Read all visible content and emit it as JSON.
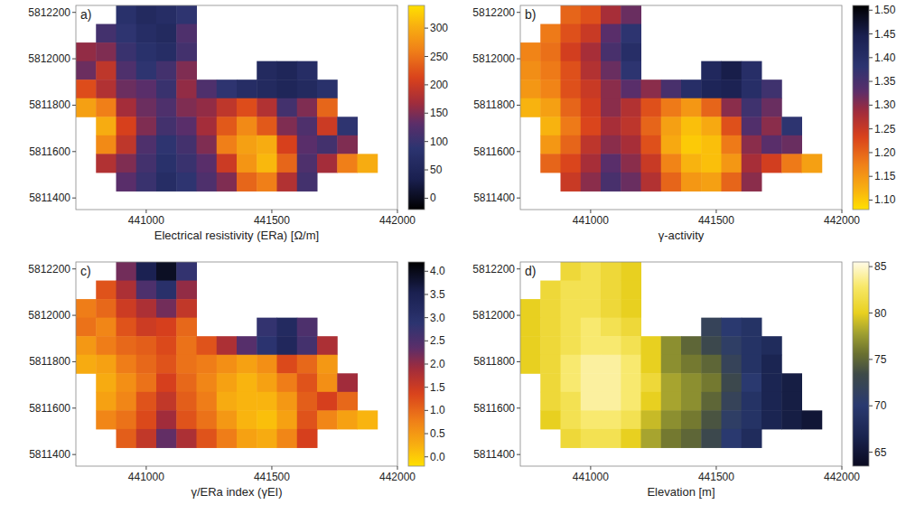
{
  "chart_data": [
    {
      "type": "heatmap",
      "panel": "a)",
      "xlabel": "Electrical resistivity (ERa) [Ω/m]",
      "x": [
        440760,
        440840,
        440920,
        441000,
        441080,
        441160,
        441240,
        441320,
        441400,
        441480,
        441560,
        441640,
        441720,
        441800,
        441880,
        441960
      ],
      "y": [
        5812190,
        5812110,
        5812030,
        5811950,
        5811870,
        5811790,
        5811710,
        5811630,
        5811550,
        5811470
      ],
      "xlim": [
        440720,
        442000
      ],
      "ylim": [
        5811350,
        5812230
      ],
      "xticks": [
        441000,
        441500,
        442000
      ],
      "yticks": [
        5811400,
        5811600,
        5811800,
        5812000,
        5812200
      ],
      "cells": [
        [
          null,
          null,
          80,
          60,
          70,
          90,
          null,
          null,
          null,
          null,
          null,
          null,
          null,
          null,
          null,
          null
        ],
        [
          null,
          110,
          90,
          70,
          60,
          120,
          null,
          null,
          null,
          null,
          null,
          null,
          null,
          null,
          null,
          null
        ],
        [
          160,
          150,
          100,
          80,
          70,
          110,
          null,
          null,
          null,
          null,
          null,
          null,
          null,
          null,
          null,
          null
        ],
        [
          140,
          190,
          120,
          90,
          110,
          150,
          null,
          null,
          null,
          60,
          50,
          70,
          null,
          null,
          null,
          null
        ],
        [
          220,
          180,
          140,
          130,
          100,
          160,
          120,
          90,
          70,
          60,
          50,
          60,
          80,
          null,
          null,
          null
        ],
        [
          290,
          260,
          170,
          140,
          120,
          150,
          160,
          190,
          220,
          180,
          110,
          150,
          240,
          null,
          null,
          null
        ],
        [
          null,
          300,
          210,
          150,
          110,
          130,
          170,
          230,
          270,
          230,
          150,
          120,
          200,
          90,
          null,
          null
        ],
        [
          null,
          270,
          190,
          120,
          90,
          110,
          150,
          260,
          290,
          300,
          210,
          130,
          110,
          150,
          null,
          null
        ],
        [
          null,
          180,
          150,
          110,
          80,
          100,
          130,
          200,
          280,
          310,
          240,
          120,
          170,
          260,
          300,
          null
        ],
        [
          null,
          null,
          130,
          100,
          70,
          90,
          120,
          150,
          240,
          260,
          180,
          110,
          null,
          null,
          null,
          null
        ]
      ],
      "color_range": [
        -20,
        340
      ],
      "color_ticks": [
        0,
        50,
        100,
        150,
        200,
        250,
        300
      ]
    },
    {
      "type": "heatmap",
      "panel": "b)",
      "xlabel": "γ-activity",
      "x": [
        440760,
        440840,
        440920,
        441000,
        441080,
        441160,
        441240,
        441320,
        441400,
        441480,
        441560,
        441640,
        441720,
        441800,
        441880,
        441960
      ],
      "y": [
        5812190,
        5812110,
        5812030,
        5811950,
        5811870,
        5811790,
        5811710,
        5811630,
        5811550,
        5811470
      ],
      "xlim": [
        440720,
        442000
      ],
      "ylim": [
        5811350,
        5812230
      ],
      "xticks": [
        441000,
        441500,
        442000
      ],
      "yticks": [
        5811400,
        5811600,
        5811800,
        5812000,
        5812200
      ],
      "cells": [
        [
          null,
          null,
          1.2,
          1.22,
          1.28,
          1.32,
          null,
          null,
          null,
          null,
          null,
          null,
          null,
          null,
          null,
          null
        ],
        [
          null,
          1.18,
          1.22,
          1.25,
          1.33,
          1.38,
          null,
          null,
          null,
          null,
          null,
          null,
          null,
          null,
          null,
          null
        ],
        [
          1.17,
          1.19,
          1.24,
          1.28,
          1.35,
          1.4,
          null,
          null,
          null,
          null,
          null,
          null,
          null,
          null,
          null,
          null
        ],
        [
          1.16,
          1.18,
          1.22,
          1.27,
          1.32,
          1.38,
          null,
          null,
          null,
          1.42,
          1.45,
          1.4,
          null,
          null,
          null,
          null
        ],
        [
          1.15,
          1.17,
          1.22,
          1.25,
          1.3,
          1.33,
          1.3,
          1.35,
          1.4,
          1.43,
          1.44,
          1.4,
          1.36,
          null,
          null,
          null
        ],
        [
          1.12,
          1.14,
          1.2,
          1.24,
          1.3,
          1.27,
          1.22,
          1.18,
          1.15,
          1.2,
          1.3,
          1.36,
          1.32,
          null,
          null,
          null
        ],
        [
          null,
          1.12,
          1.18,
          1.23,
          1.28,
          1.26,
          1.2,
          1.14,
          1.11,
          1.13,
          1.22,
          1.34,
          1.3,
          1.38,
          null,
          null
        ],
        [
          null,
          1.15,
          1.2,
          1.26,
          1.3,
          1.28,
          1.22,
          1.13,
          1.1,
          1.11,
          1.18,
          1.3,
          1.33,
          1.32,
          null,
          null
        ],
        [
          null,
          1.2,
          1.23,
          1.28,
          1.33,
          1.3,
          1.25,
          1.17,
          1.12,
          1.11,
          1.15,
          1.28,
          1.24,
          1.18,
          1.14,
          null
        ],
        [
          null,
          null,
          1.25,
          1.3,
          1.35,
          1.32,
          1.27,
          1.2,
          1.15,
          1.14,
          1.2,
          1.3,
          null,
          null,
          null,
          null
        ]
      ],
      "color_range": [
        1.08,
        1.51
      ],
      "color_ticks": [
        {
          "value": 1.1,
          "label": "1.10"
        },
        1.15,
        {
          "value": 1.2,
          "label": "1.20"
        },
        1.25,
        {
          "value": 1.3,
          "label": "1.30"
        },
        1.35,
        {
          "value": 1.4,
          "label": "1.40"
        },
        1.45,
        {
          "value": 1.5,
          "label": "1.50"
        }
      ]
    },
    {
      "type": "heatmap",
      "panel": "c)",
      "xlabel": "γ/ERa index (γEI)",
      "x": [
        440760,
        440840,
        440920,
        441000,
        441080,
        441160,
        441240,
        441320,
        441400,
        441480,
        441560,
        441640,
        441720,
        441800,
        441880,
        441960
      ],
      "y": [
        5812190,
        5812110,
        5812030,
        5811950,
        5811870,
        5811790,
        5811710,
        5811630,
        5811550,
        5811470
      ],
      "xlim": [
        440720,
        442000
      ],
      "ylim": [
        5811350,
        5812230
      ],
      "xticks": [
        441000,
        441500,
        442000
      ],
      "yticks": [
        5811400,
        5811600,
        5811800,
        5812000,
        5812200
      ],
      "cells": [
        [
          null,
          null,
          2.2,
          3.5,
          3.9,
          2.8,
          null,
          null,
          null,
          null,
          null,
          null,
          null,
          null,
          null,
          null
        ],
        [
          null,
          1.2,
          1.8,
          2.5,
          3.0,
          2.0,
          null,
          null,
          null,
          null,
          null,
          null,
          null,
          null,
          null,
          null
        ],
        [
          0.8,
          1.0,
          1.5,
          1.8,
          2.2,
          1.6,
          null,
          null,
          null,
          null,
          null,
          null,
          null,
          null,
          null,
          null
        ],
        [
          0.9,
          0.7,
          1.2,
          1.5,
          1.4,
          1.0,
          null,
          null,
          null,
          2.8,
          3.2,
          2.5,
          null,
          null,
          null,
          null
        ],
        [
          0.5,
          0.8,
          1.0,
          1.1,
          1.3,
          0.9,
          1.2,
          1.8,
          2.4,
          2.9,
          3.3,
          2.6,
          1.8,
          null,
          null,
          null
        ],
        [
          0.3,
          0.4,
          0.8,
          1.0,
          1.2,
          0.9,
          0.8,
          0.6,
          0.4,
          0.6,
          1.3,
          1.0,
          0.5,
          null,
          null,
          null
        ],
        [
          null,
          0.3,
          0.6,
          0.9,
          1.4,
          1.0,
          0.7,
          0.4,
          0.2,
          0.4,
          0.8,
          1.2,
          0.6,
          1.9,
          null,
          null
        ],
        [
          null,
          0.4,
          0.7,
          1.2,
          1.6,
          1.1,
          0.8,
          0.3,
          0.2,
          0.2,
          0.5,
          1.1,
          1.4,
          1.0,
          null,
          null
        ],
        [
          null,
          0.7,
          0.9,
          1.3,
          1.9,
          1.2,
          0.9,
          0.5,
          0.2,
          0.1,
          0.4,
          1.2,
          0.7,
          0.4,
          0.2,
          null
        ],
        [
          null,
          null,
          1.1,
          1.6,
          2.3,
          1.8,
          1.2,
          0.8,
          0.4,
          0.3,
          0.7,
          1.4,
          null,
          null,
          null,
          null
        ]
      ],
      "color_range": [
        -0.2,
        4.2
      ],
      "color_ticks": [
        {
          "value": 0,
          "label": "0.0"
        },
        0.5,
        {
          "value": 1,
          "label": "1.0"
        },
        1.5,
        {
          "value": 2,
          "label": "2.0"
        },
        2.5,
        {
          "value": 3,
          "label": "3.0"
        },
        3.5,
        {
          "value": 4,
          "label": "4.0"
        }
      ]
    },
    {
      "type": "heatmap",
      "panel": "d)",
      "xlabel": "Elevation [m]",
      "x": [
        440760,
        440840,
        440920,
        441000,
        441080,
        441160,
        441240,
        441320,
        441400,
        441480,
        441560,
        441640,
        441720,
        441800,
        441880,
        441960
      ],
      "y": [
        5812190,
        5812110,
        5812030,
        5811950,
        5811870,
        5811790,
        5811710,
        5811630,
        5811550,
        5811470
      ],
      "xlim": [
        440720,
        442000
      ],
      "ylim": [
        5811350,
        5812230
      ],
      "xticks": [
        441000,
        441500,
        442000
      ],
      "yticks": [
        5811400,
        5811600,
        5811800,
        5812000,
        5812200
      ],
      "cells": [
        [
          null,
          null,
          81,
          82,
          81,
          80,
          null,
          null,
          null,
          null,
          null,
          null,
          null,
          null,
          null,
          null
        ],
        [
          null,
          81,
          82,
          82,
          81,
          80,
          null,
          null,
          null,
          null,
          null,
          null,
          null,
          null,
          null,
          null
        ],
        [
          80,
          81,
          82,
          82,
          81,
          80,
          null,
          null,
          null,
          null,
          null,
          null,
          null,
          null,
          null,
          null
        ],
        [
          80,
          81,
          82,
          83,
          82,
          81,
          null,
          null,
          null,
          72,
          70,
          69,
          null,
          null,
          null,
          null
        ],
        [
          80,
          81,
          82,
          83,
          83,
          82,
          80,
          77,
          75,
          73,
          71,
          69,
          68,
          null,
          null,
          null
        ],
        [
          80,
          81,
          83,
          84,
          84,
          83,
          80,
          77,
          76,
          75,
          72,
          69,
          67,
          null,
          null,
          null
        ],
        [
          null,
          81,
          83,
          84,
          84,
          83,
          81,
          78,
          77,
          76,
          73,
          70,
          67,
          66,
          null,
          null
        ],
        [
          null,
          81,
          82,
          84,
          84,
          83,
          80,
          78,
          77,
          75,
          72,
          69,
          67,
          66,
          null,
          null
        ],
        [
          null,
          80,
          82,
          83,
          83,
          82,
          79,
          77,
          76,
          74,
          71,
          69,
          67,
          66,
          65,
          null
        ],
        [
          null,
          null,
          81,
          82,
          82,
          80,
          78,
          76,
          75,
          73,
          70,
          68,
          null,
          null,
          null,
          null
        ]
      ],
      "color_range": [
        63.5,
        85.5
      ],
      "color_ticks": [
        65,
        70,
        75,
        80,
        85
      ]
    }
  ]
}
